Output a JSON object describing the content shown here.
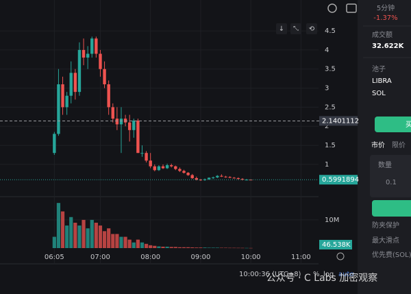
{
  "chart_data": {
    "type": "candlestick",
    "x": [
      365,
      370,
      375,
      380,
      385,
      390,
      395,
      400,
      405,
      410,
      415,
      420,
      425,
      430,
      435,
      440,
      445,
      450,
      455,
      460,
      465,
      470,
      475,
      480,
      485,
      490,
      495,
      500,
      505,
      510,
      515,
      520,
      525,
      530,
      535,
      540,
      545,
      550,
      555,
      560,
      565,
      570,
      575,
      580,
      585,
      590,
      595,
      600
    ],
    "open": [
      1.3,
      1.8,
      3.1,
      2.5,
      2.8,
      3.4,
      2.9,
      4.0,
      3.8,
      3.9,
      4.3,
      3.9,
      3.5,
      3.1,
      2.5,
      2.2,
      2.05,
      2.2,
      2.1,
      1.9,
      2.15,
      1.3,
      1.3,
      1.1,
      0.95,
      0.85,
      0.95,
      0.9,
      0.98,
      0.95,
      0.88,
      0.83,
      0.78,
      0.72,
      0.64,
      0.6,
      0.59,
      0.61,
      0.65,
      0.66,
      0.7,
      0.68,
      0.67,
      0.65,
      0.64,
      0.62,
      0.6,
      0.6
    ],
    "high": [
      1.85,
      3.5,
      3.3,
      2.9,
      3.7,
      3.5,
      4.2,
      4.3,
      4.1,
      4.35,
      4.35,
      4.0,
      3.7,
      3.2,
      2.6,
      2.5,
      2.5,
      2.3,
      2.3,
      2.2,
      2.2,
      1.5,
      1.35,
      1.3,
      1.0,
      0.98,
      1.0,
      1.02,
      1.02,
      0.97,
      0.92,
      0.86,
      0.8,
      0.75,
      0.68,
      0.62,
      0.63,
      0.66,
      0.68,
      0.72,
      0.74,
      0.7,
      0.69,
      0.67,
      0.66,
      0.64,
      0.62,
      0.61
    ],
    "low": [
      1.25,
      1.75,
      2.3,
      2.3,
      2.6,
      2.7,
      2.8,
      3.6,
      3.5,
      3.8,
      3.8,
      3.3,
      3.0,
      2.3,
      2.1,
      1.9,
      1.3,
      2.0,
      1.6,
      1.7,
      1.3,
      1.2,
      1.05,
      0.9,
      0.82,
      0.83,
      0.88,
      0.88,
      0.92,
      0.85,
      0.8,
      0.76,
      0.7,
      0.62,
      0.58,
      0.57,
      0.57,
      0.6,
      0.62,
      0.64,
      0.67,
      0.65,
      0.64,
      0.63,
      0.6,
      0.58,
      0.58,
      0.59
    ],
    "close": [
      1.8,
      3.1,
      2.5,
      2.8,
      3.4,
      2.9,
      4.0,
      3.8,
      3.9,
      4.3,
      3.9,
      3.5,
      3.1,
      2.5,
      2.2,
      2.05,
      2.2,
      2.1,
      1.9,
      2.15,
      1.3,
      1.3,
      1.1,
      0.95,
      0.85,
      0.95,
      0.9,
      0.98,
      0.95,
      0.88,
      0.83,
      0.78,
      0.72,
      0.64,
      0.6,
      0.59,
      0.61,
      0.65,
      0.66,
      0.7,
      0.68,
      0.67,
      0.65,
      0.64,
      0.62,
      0.6,
      0.6,
      0.5991894
    ],
    "volume": [
      4000000,
      16000000,
      13000000,
      8000000,
      11000000,
      9000000,
      8000000,
      10000000,
      7000000,
      10000000,
      9000000,
      8000000,
      6000000,
      7000000,
      5000000,
      5000000,
      4000000,
      4000000,
      3000000,
      2000000,
      3000000,
      2000000,
      1500000,
      1000000,
      800000,
      600000,
      500000,
      500000,
      400000,
      400000,
      300000,
      300000,
      300000,
      250000,
      200000,
      200000,
      200000,
      150000,
      150000,
      150000,
      120000,
      120000,
      100000,
      100000,
      90000,
      80000,
      60000,
      46538
    ],
    "volume_last_label": "46.538K",
    "xlim": [
      300,
      681
    ],
    "xticks": [
      {
        "value": 365,
        "label": "06:05"
      },
      {
        "value": 420,
        "label": "07:00"
      },
      {
        "value": 480,
        "label": "08:00"
      },
      {
        "value": 540,
        "label": "09:00"
      },
      {
        "value": 600,
        "label": "10:00"
      },
      {
        "value": 660,
        "label": "11:00"
      }
    ],
    "ylim": [
      0.19,
      5.13
    ],
    "yticks": [
      1,
      1.5,
      2,
      2.5,
      3,
      3.5,
      4,
      4.5
    ],
    "y2lim": [
      0,
      17500000
    ],
    "y2ticks": [
      {
        "value": 10000000,
        "label": "10M"
      }
    ],
    "crosshair": 2.1401112,
    "up_color": "#26a69a",
    "down_color": "#ef5350"
  },
  "ui": {
    "timeframe": "5分钟",
    "change": "-1.37%",
    "turnover_label": "成交额",
    "turnover": "32.622K",
    "pool_label": "池子",
    "pool_a": "LIBRA",
    "pool_b": "SOL",
    "buy": "买",
    "market": "市价",
    "limit": "限价",
    "amount_label": "数量",
    "amount": "0.1",
    "protect": "防夹保护",
    "slippage": "最大滑点",
    "priority_fee": "优先费(SOL)",
    "clock": "10:00:36 (UTC+8)",
    "percent": "%",
    "log": "log",
    "auto": "auto",
    "watermark": "公众号 · C Labs 加密观察"
  }
}
